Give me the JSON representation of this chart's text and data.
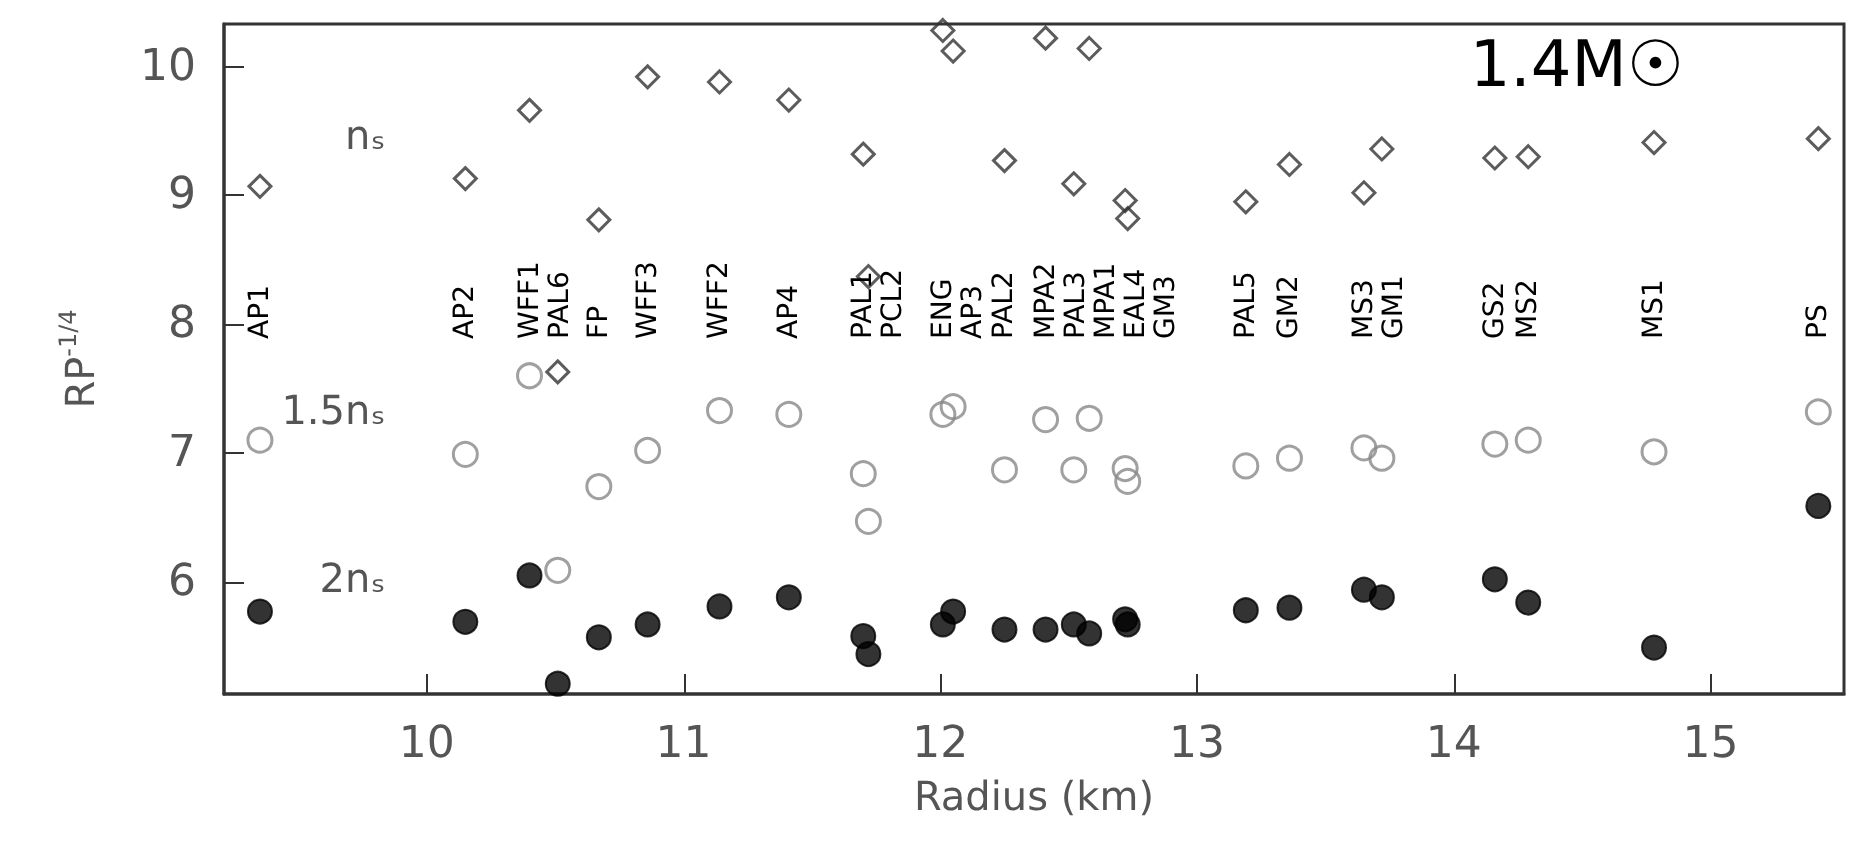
{
  "chart_data": {
    "type": "scatter",
    "xlabel": "Radius (km)",
    "ylabel": "RP$^{-1/4}$",
    "x": [
      9.35,
      10.15,
      10.4,
      10.51,
      10.67,
      10.86,
      11.14,
      11.41,
      11.7,
      11.72,
      12.01,
      12.05,
      12.25,
      12.41,
      12.52,
      12.58,
      12.72,
      12.73,
      13.19,
      13.36,
      13.65,
      13.72,
      14.16,
      14.29,
      14.78,
      15.42
    ],
    "series": [
      {
        "name": "nₛ",
        "color": "#333333",
        "marker": "diamond",
        "values": [
          9.07,
          9.13,
          9.66,
          7.63,
          8.81,
          9.92,
          9.88,
          9.74,
          9.32,
          8.37,
          10.28,
          10.12,
          9.27,
          10.22,
          9.09,
          10.14,
          8.96,
          8.82,
          8.95,
          9.24,
          9.02,
          9.36,
          9.29,
          9.3,
          9.41,
          9.44
        ]
      },
      {
        "name": "1.5nₛ",
        "color": "#888888",
        "marker": "circle",
        "values": [
          7.1,
          6.99,
          7.6,
          6.09,
          6.74,
          7.02,
          7.33,
          7.3,
          6.84,
          6.47,
          7.3,
          7.36,
          6.87,
          7.26,
          6.87,
          7.27,
          6.88,
          6.78,
          6.9,
          6.96,
          7.04,
          6.96,
          7.07,
          7.1,
          7.01,
          7.32
        ]
      },
      {
        "name": "2nₛ",
        "color": "#000000",
        "marker": "circle",
        "values": [
          5.77,
          5.69,
          6.05,
          5.21,
          5.57,
          5.67,
          5.81,
          5.88,
          5.58,
          5.44,
          5.67,
          5.77,
          5.63,
          5.63,
          5.67,
          5.6,
          5.71,
          5.67,
          5.78,
          5.8,
          5.94,
          5.88,
          6.02,
          5.84,
          5.49,
          6.59
        ]
      }
    ],
    "xlim": [
      9.21,
      15.52
    ],
    "xticks": [
      10,
      11,
      12,
      13,
      14,
      15
    ],
    "ylim": [
      5.13,
      10.33
    ],
    "yticks": [
      6,
      7,
      8,
      9,
      10
    ],
    "grid": false,
    "annotations": [
      "1.4M☉",
      "AP1",
      "AP2",
      "WFF1",
      "PAL6",
      "FP",
      "WFF3",
      "WFF2",
      "AP4",
      "PAL1",
      "PCL2",
      "ENG",
      "AP3",
      "PAL2",
      "MPA2",
      "PAL3",
      "MPA1",
      "EAL4",
      "GM3",
      "PAL5",
      "GM2",
      "MS3",
      "GM1",
      "GS2",
      "MS2",
      "MS1",
      "PS"
    ]
  }
}
